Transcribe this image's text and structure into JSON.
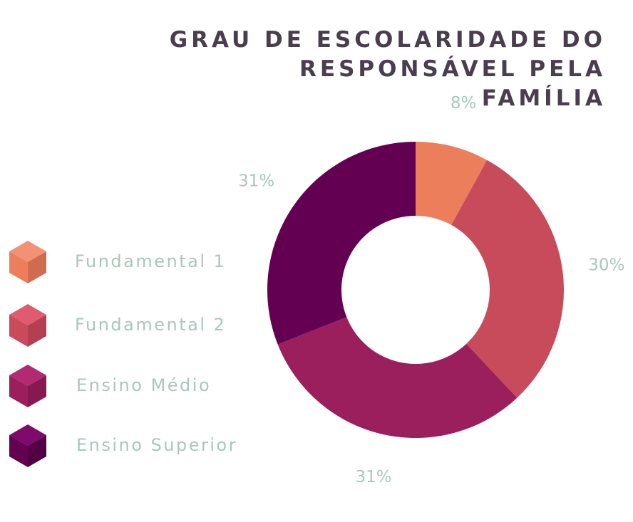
{
  "chart_data": {
    "type": "pie",
    "title_lines": [
      "GRAU DE ESCOLARIDADE DO",
      "RESPONSÁVEL PELA FAMÍLIA"
    ],
    "categories": [
      "Fundamental 1",
      "Fundamental 2",
      "Ensino Médio",
      "Ensino Superior"
    ],
    "values": [
      8,
      30,
      31,
      31
    ],
    "value_labels": [
      "8%",
      "30%",
      "31%",
      "31%"
    ],
    "colors": [
      "#ec7e5c",
      "#c84b5b",
      "#9a1f5c",
      "#640052"
    ],
    "cube_top_colors": [
      "#f39175",
      "#e05a70",
      "#b12a72",
      "#7f0a6c"
    ],
    "cube_side_colors": [
      "#cf6c4f",
      "#b43f50",
      "#86194f",
      "#520043"
    ],
    "donut": true,
    "legend_position": "left"
  }
}
